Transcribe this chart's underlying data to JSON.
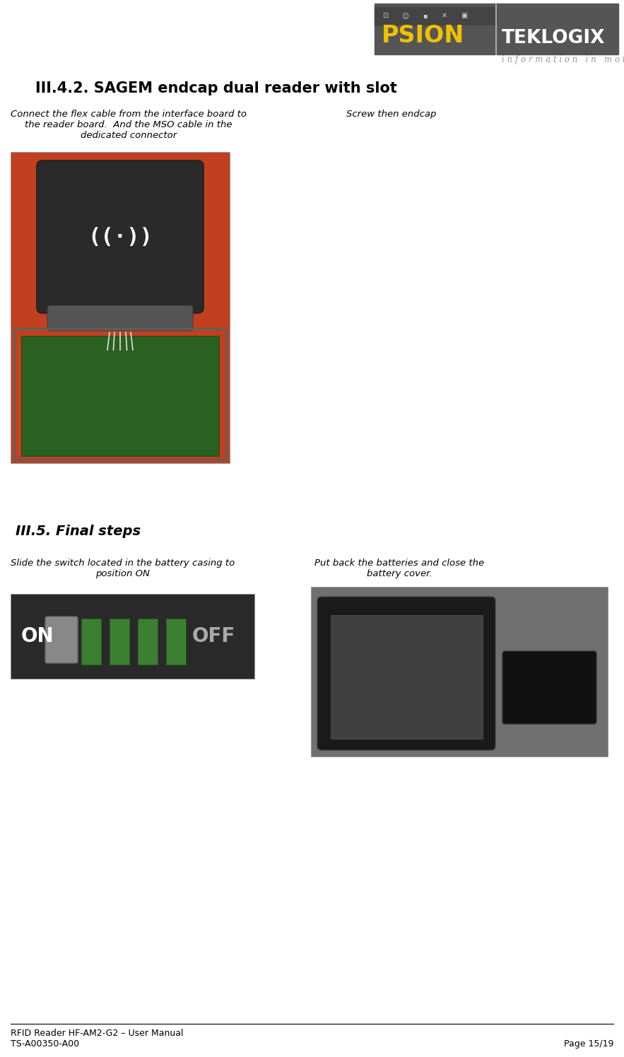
{
  "bg_color": "#ffffff",
  "page_width": 8.83,
  "page_height": 14.95,
  "logo_text_psion": "PSION",
  "logo_text_teklogix": "TEKLOGIX",
  "logo_subtitle": "i n f o r m a t i o n   i n   m o t i o n",
  "section_title": "III.4.2. SAGEM endcap dual reader with slot",
  "col1_caption": "Connect the flex cable from the interface board to\nthe reader board.  And the MSO cable in the\ndedicated connector",
  "col2_caption": "Screw then endcap",
  "section2_title": "III.5. Final steps",
  "col3_caption": "Slide the switch located in the battery casing to\nposition ON",
  "col4_caption": "Put back the batteries and close the\nbattery cover.",
  "footer_line1": "RFID Reader HF-AM2-G2 – User Manual",
  "footer_line2": "TS-A00350-A00",
  "footer_page": "Page 15/19",
  "header_bg": "#555555",
  "header_bg_dark": "#444444",
  "psion_color": "#f0c000",
  "teklogix_color": "#ffffff",
  "subtitle_color": "#999999"
}
